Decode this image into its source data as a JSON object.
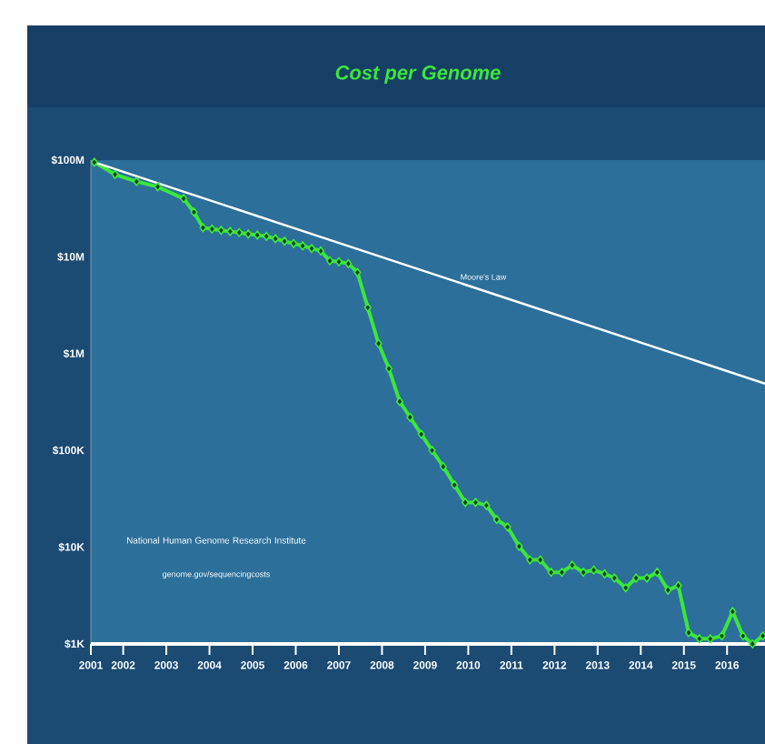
{
  "chart_data": {
    "type": "line",
    "title": "Cost per Genome",
    "log": "y",
    "marker": "diamond",
    "ylim": [
      1000,
      100000000
    ],
    "yticks": [
      {
        "value": 1000,
        "label": "$1K"
      },
      {
        "value": 10000,
        "label": "$10K"
      },
      {
        "value": 100000,
        "label": "$100K"
      },
      {
        "value": 1000000,
        "label": "$1M"
      },
      {
        "value": 10000000,
        "label": "$10M"
      },
      {
        "value": 100000000,
        "label": "$100M"
      }
    ],
    "xlim": [
      2001.25,
      2016.88
    ],
    "xticks": [
      {
        "value": 2001.25,
        "label": "2001"
      },
      2002,
      2003,
      2004,
      2005,
      2006,
      2007,
      2008,
      2009,
      2010,
      2011,
      2012,
      2013,
      2014,
      2015,
      2016
    ],
    "annotations": [
      "National Human Genome Research Institute",
      "genome.gov/sequencingcosts"
    ],
    "series": [
      {
        "color": "#3ce63c",
        "x": [
          2001.33,
          2001.81,
          2002.31,
          2002.8,
          2003.4,
          2003.64,
          2003.85,
          2004.06,
          2004.27,
          2004.48,
          2004.69,
          2004.9,
          2005.11,
          2005.32,
          2005.53,
          2005.74,
          2005.95,
          2006.16,
          2006.37,
          2006.58,
          2006.79,
          2007.0,
          2007.22,
          2007.43,
          2007.67,
          2007.92,
          2008.16,
          2008.41,
          2008.65,
          2008.91,
          2009.16,
          2009.42,
          2009.68,
          2009.93,
          2010.17,
          2010.42,
          2010.66,
          2010.91,
          2011.18,
          2011.43,
          2011.67,
          2011.92,
          2012.17,
          2012.41,
          2012.67,
          2012.91,
          2013.16,
          2013.39,
          2013.65,
          2013.89,
          2014.14,
          2014.38,
          2014.63,
          2014.87,
          2015.11,
          2015.36,
          2015.61,
          2015.88,
          2016.13,
          2016.37,
          2016.59,
          2016.83
        ],
        "values": [
          95000000,
          71000000,
          60000000,
          53000000,
          40000000,
          29000000,
          20000000,
          19400000,
          18800000,
          18300000,
          17800000,
          17200000,
          16800000,
          16300000,
          15400000,
          14500000,
          13700000,
          13000000,
          12200000,
          11500000,
          9100000,
          8900000,
          8500000,
          6900000,
          3000000,
          1270000,
          700000,
          320000,
          220000,
          147000,
          100000,
          68000,
          44000,
          29000,
          29000,
          27000,
          19300,
          16200,
          10200,
          7400,
          7400,
          5500,
          5500,
          6500,
          5500,
          5800,
          5300,
          4800,
          3800,
          4800,
          4800,
          5500,
          3600,
          4000,
          1310,
          1130,
          1130,
          1210,
          2160,
          1210,
          1000,
          1210
        ]
      },
      {
        "name": "Moore's Law",
        "color": "#ffffff",
        "marker": "none",
        "x": [
          2001.33,
          2016.88
        ],
        "values": [
          95000000,
          490000
        ]
      }
    ]
  }
}
